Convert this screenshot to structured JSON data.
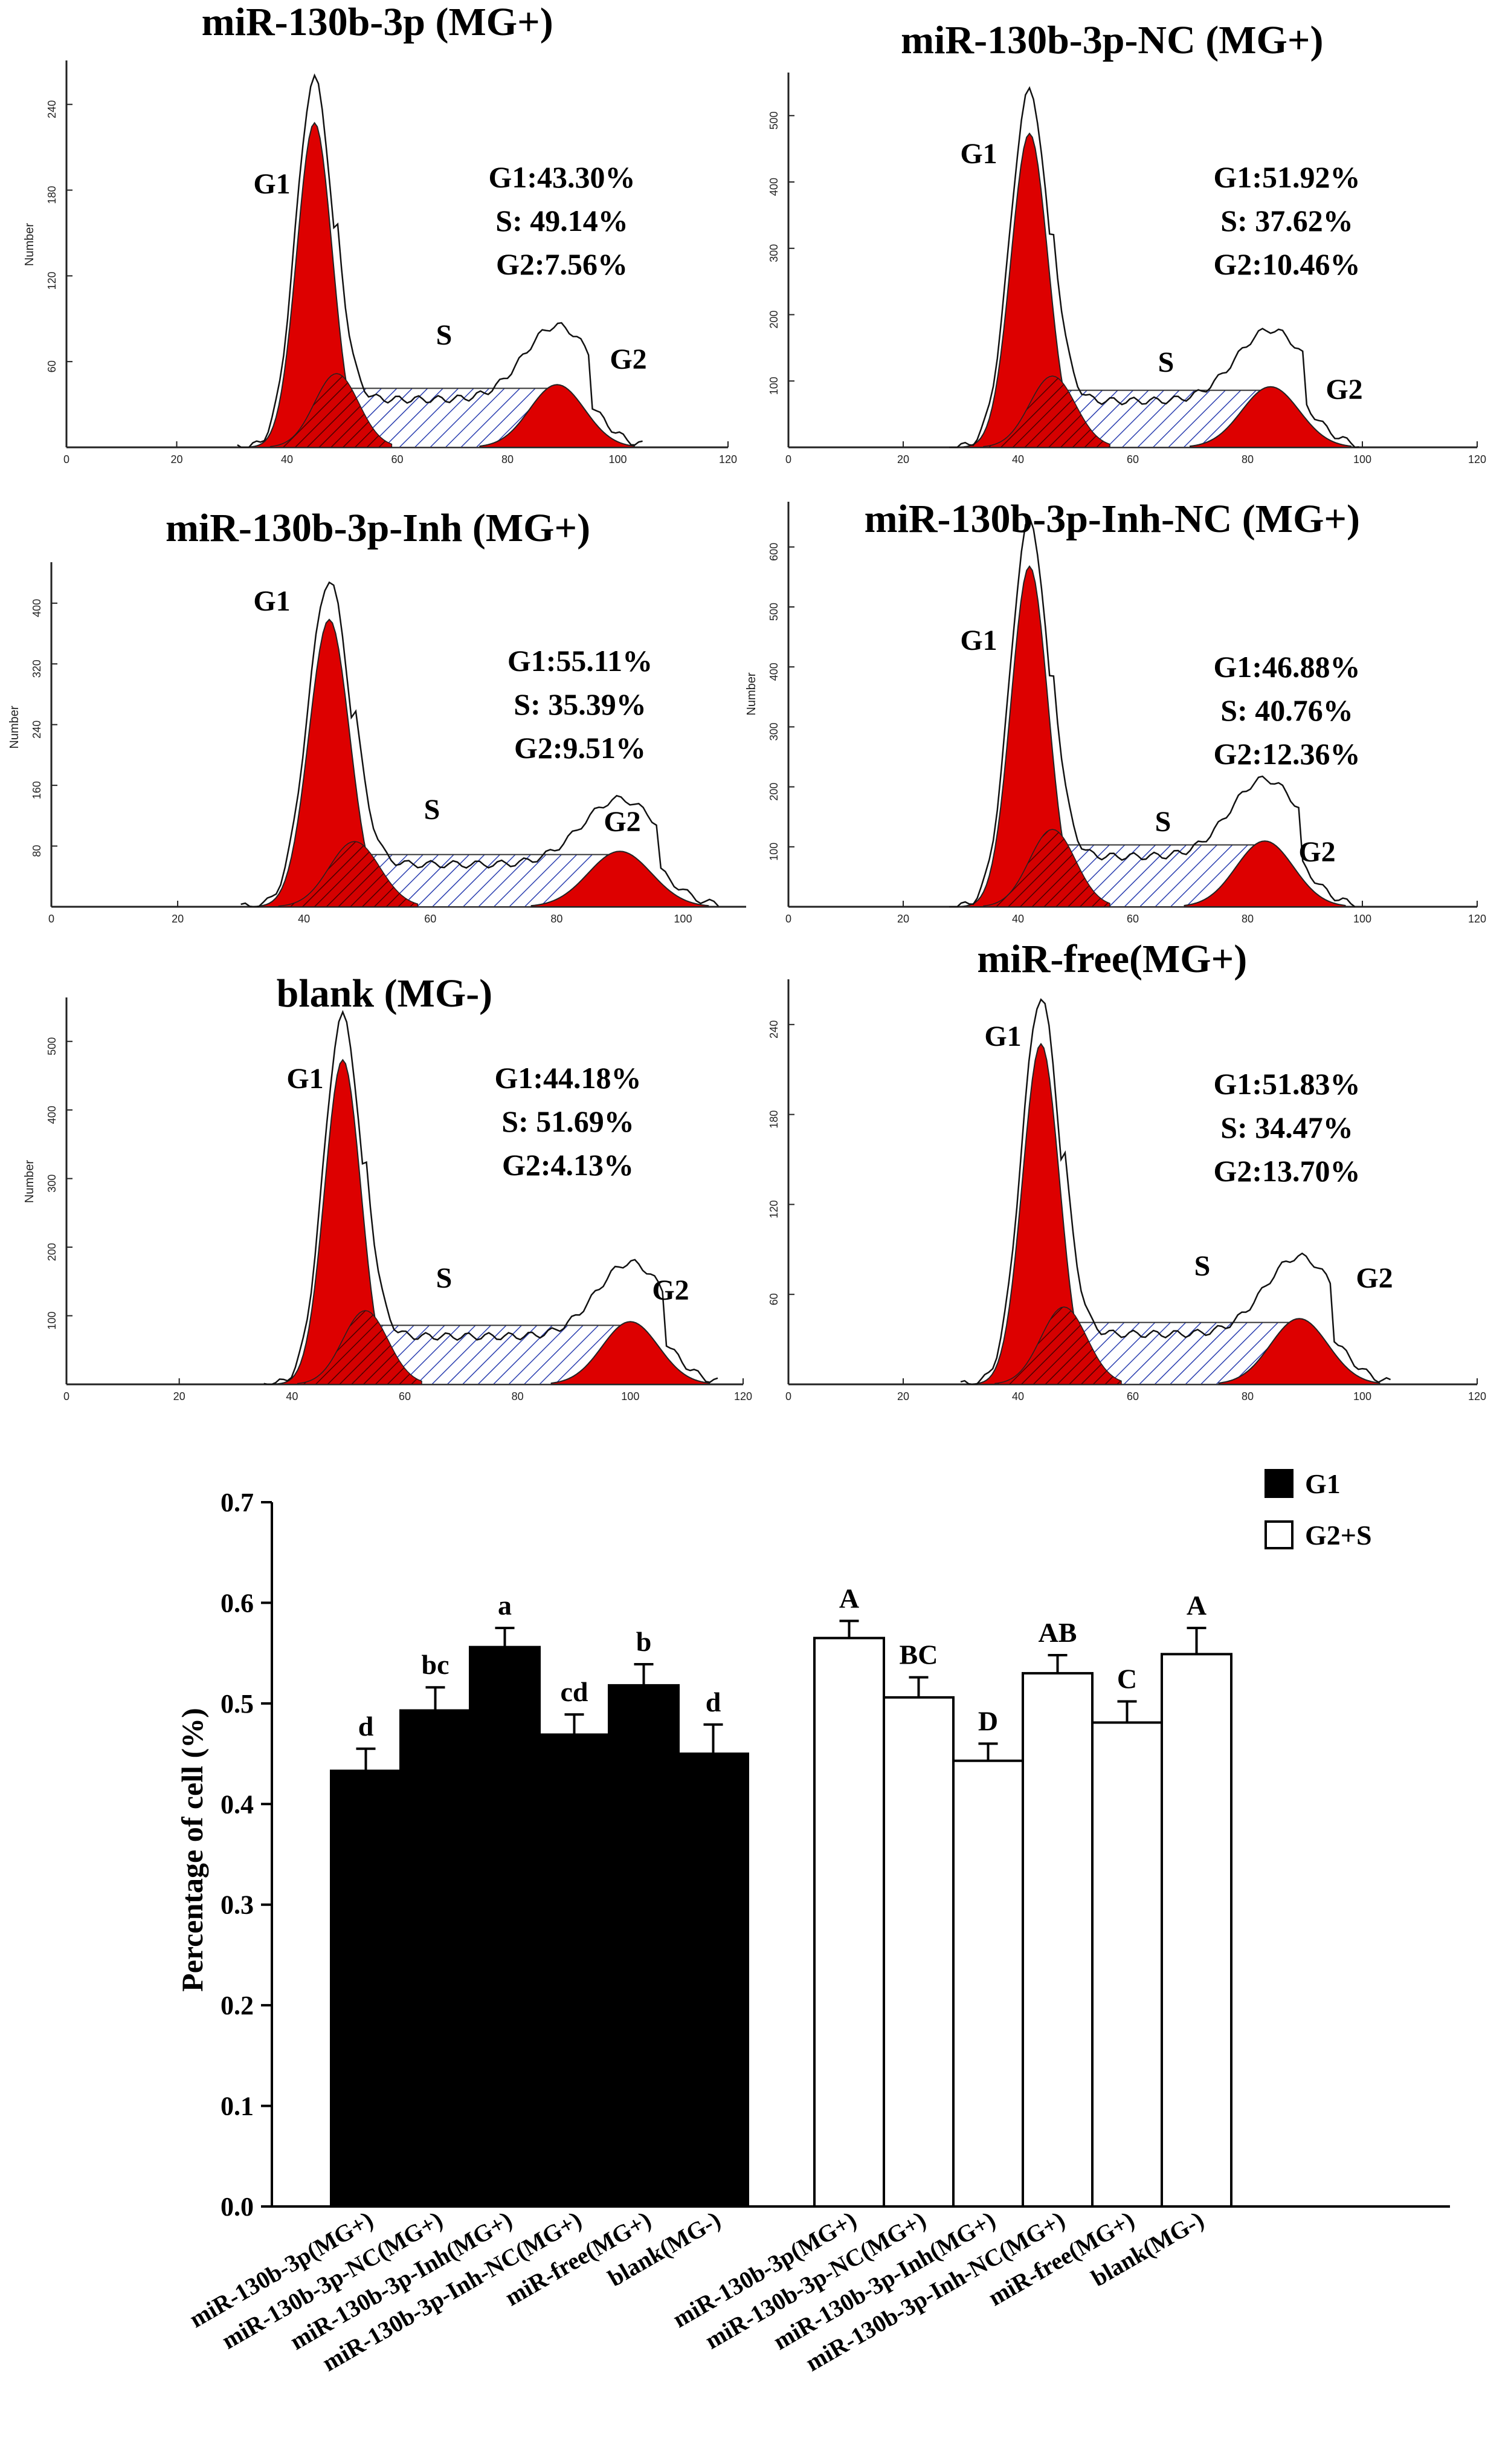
{
  "figure": {
    "histograms": [
      {
        "title": "miR-130b-3p (MG+)",
        "stats": [
          "G1:43.30%",
          "S: 49.14%",
          "G2:7.56%"
        ],
        "peak_labels": [
          "G1",
          "S",
          "G2"
        ],
        "y_axis_label": "Number",
        "y_ticks": [
          "60",
          "120",
          "180",
          "240"
        ],
        "x_ticks": [
          "0",
          "20",
          "40",
          "60",
          "80",
          "100",
          "120"
        ]
      },
      {
        "title": "miR-130b-3p-NC (MG+)",
        "stats": [
          "G1:51.92%",
          "S: 37.62%",
          "G2:10.46%"
        ],
        "peak_labels": [
          "G1",
          "S",
          "G2"
        ],
        "y_axis_label": "",
        "y_ticks": [
          "100",
          "200",
          "300",
          "400",
          "500"
        ],
        "x_ticks": [
          "0",
          "20",
          "40",
          "60",
          "80",
          "100",
          "120"
        ]
      },
      {
        "title": "miR-130b-3p-Inh (MG+)",
        "stats": [
          "G1:55.11%",
          "S: 35.39%",
          "G2:9.51%"
        ],
        "peak_labels": [
          "G1",
          "S",
          "G2"
        ],
        "y_axis_label": "Number",
        "y_ticks": [
          "80",
          "160",
          "240",
          "320",
          "400"
        ],
        "x_ticks": [
          "0",
          "20",
          "40",
          "60",
          "80",
          "100"
        ]
      },
      {
        "title": "miR-130b-3p-Inh-NC (MG+)",
        "stats": [
          "G1:46.88%",
          "S: 40.76%",
          "G2:12.36%"
        ],
        "peak_labels": [
          "G1",
          "S",
          "G2"
        ],
        "y_axis_label": "Number",
        "y_ticks": [
          "100",
          "200",
          "300",
          "400",
          "500",
          "600"
        ],
        "x_ticks": [
          "0",
          "20",
          "40",
          "60",
          "80",
          "100",
          "120"
        ]
      },
      {
        "title": "blank (MG-)",
        "stats": [
          "G1:44.18%",
          "S: 51.69%",
          "G2:4.13%"
        ],
        "peak_labels": [
          "G1",
          "S",
          "G2"
        ],
        "y_axis_label": "Number",
        "y_ticks": [
          "100",
          "200",
          "300",
          "400",
          "500"
        ],
        "x_ticks": [
          "0",
          "20",
          "40",
          "60",
          "80",
          "100",
          "120"
        ]
      },
      {
        "title": "miR-free(MG+)",
        "stats": [
          "G1:51.83%",
          "S: 34.47%",
          "G2:13.70%"
        ],
        "peak_labels": [
          "G1",
          "S",
          "G2"
        ],
        "y_axis_label": "",
        "y_ticks": [
          "60",
          "120",
          "180",
          "240"
        ],
        "x_ticks": [
          "0",
          "20",
          "40",
          "60",
          "80",
          "100",
          "120"
        ]
      }
    ]
  },
  "chart_data": {
    "type": "bar",
    "title": "",
    "xlabel": "",
    "ylabel": "Percentage of cell (%)",
    "ylim": [
      0,
      0.7
    ],
    "y_ticks": [
      "0.0",
      "0.1",
      "0.2",
      "0.3",
      "0.4",
      "0.5",
      "0.6",
      "0.7"
    ],
    "legend_position": "top-right",
    "categories": [
      "miR-130b-3p(MG+)",
      "miR-130b-3p-NC(MG+)",
      "miR-130b-3p-Inh(MG+)",
      "miR-130b-3p-Inh-NC(MG+)",
      "miR-free(MG+)",
      "blank(MG-)"
    ],
    "series": [
      {
        "name": "G1",
        "color": "#000000",
        "values": [
          0.433,
          0.493,
          0.556,
          0.469,
          0.518,
          0.45
        ],
        "errors": [
          0.022,
          0.023,
          0.019,
          0.02,
          0.021,
          0.029
        ],
        "labels": [
          "d",
          "bc",
          "a",
          "cd",
          "b",
          "d"
        ]
      },
      {
        "name": "G2+S",
        "color": "#ffffff",
        "values": [
          0.565,
          0.506,
          0.443,
          0.53,
          0.481,
          0.549
        ],
        "errors": [
          0.017,
          0.02,
          0.017,
          0.018,
          0.021,
          0.026
        ],
        "labels": [
          "A",
          "BC",
          "D",
          "AB",
          "C",
          "A"
        ]
      }
    ]
  }
}
